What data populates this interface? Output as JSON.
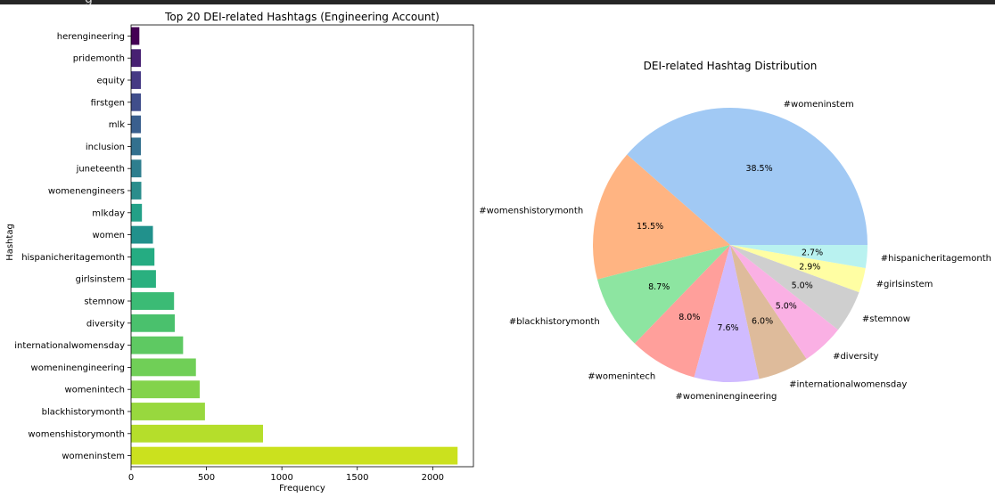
{
  "header": {
    "fragment": "g"
  },
  "chart_data": [
    {
      "type": "bar",
      "orientation": "horizontal",
      "title": "Top 20 DEI-related Hashtags (Engineering Account)",
      "xlabel": "Frequency",
      "ylabel": "Hashtag",
      "xlim": [
        0,
        2270
      ],
      "xticks": [
        0,
        500,
        1000,
        1500,
        2000
      ],
      "grid": false,
      "palette": "viridis",
      "categories": [
        "herengineering",
        "pridemonth",
        "equity",
        "firstgen",
        "mlk",
        "inclusion",
        "juneteenth",
        "womenengineers",
        "mlkday",
        "women",
        "hispanicheritagemonth",
        "girlsinstem",
        "stemnow",
        "diversity",
        "internationalwomensday",
        "womeninengineering",
        "womenintech",
        "blackhistorymonth",
        "womenshistorymonth",
        "womeninstem"
      ],
      "values": [
        55,
        65,
        65,
        65,
        65,
        65,
        68,
        68,
        72,
        145,
        155,
        165,
        285,
        290,
        345,
        430,
        455,
        490,
        875,
        2165
      ],
      "colors": [
        "#440154",
        "#472172",
        "#463a84",
        "#404e8b",
        "#3a5f8e",
        "#33708e",
        "#2e7e8e",
        "#2a8d8c",
        "#23a087",
        "#21918c",
        "#25ac82",
        "#2ab07f",
        "#3bbb75",
        "#4ac16d",
        "#5ec962",
        "#70cf57",
        "#83d34b",
        "#98d83e",
        "#b5de2b",
        "#cbe11e"
      ]
    },
    {
      "type": "pie",
      "title": "DEI-related Hashtag Distribution",
      "labels": [
        "#womeninstem",
        "#womenshistorymonth",
        "#blackhistorymonth",
        "#womenintech",
        "#womeninengineering",
        "#internationalwomensday",
        "#diversity",
        "#stemnow",
        "#girlsinstem",
        "#hispanicheritagemonth"
      ],
      "percent_labels": [
        "38.5%",
        "15.5%",
        "8.7%",
        "8.0%",
        "7.6%",
        "6.0%",
        "5.0%",
        "5.0%",
        "2.9%",
        "2.7%"
      ],
      "values": [
        38.5,
        15.5,
        8.7,
        8.0,
        7.6,
        6.0,
        5.0,
        5.0,
        2.9,
        2.7
      ],
      "colors": [
        "#a1c9f4",
        "#ffb482",
        "#8de5a1",
        "#ff9f9b",
        "#d0bbff",
        "#debb9b",
        "#fab0e4",
        "#cfcfcf",
        "#fffea3",
        "#b9f2f0"
      ]
    }
  ]
}
